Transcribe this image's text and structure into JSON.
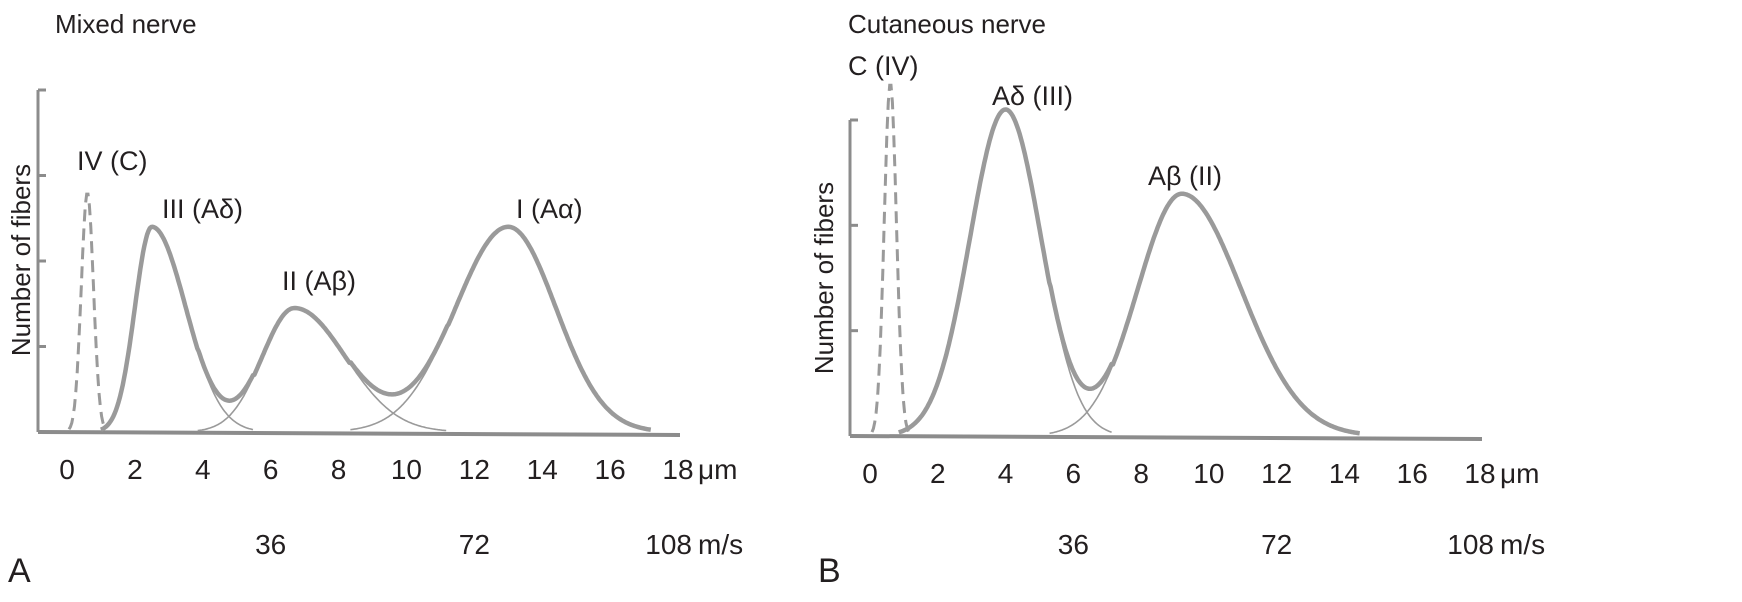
{
  "chart_data": [
    {
      "type": "line",
      "panel_letter": "A",
      "title": "Mixed nerve",
      "ylabel": "Number of fibers",
      "xlabel_unit": "μm",
      "velocity_unit": "m/s",
      "xlim": [
        0,
        18
      ],
      "ylim": [
        0,
        4
      ],
      "x_ticks": [
        "0",
        "2",
        "4",
        "6",
        "8",
        "10",
        "12",
        "14",
        "16",
        "18"
      ],
      "velocity_ticks": [
        {
          "x": 6,
          "label": "36"
        },
        {
          "x": 12,
          "label": "72"
        },
        {
          "x": 18,
          "label": "108"
        }
      ],
      "y_tick_count": 4,
      "series": [
        {
          "name": "IV (C)",
          "style": "dashed",
          "peak_x": 0.6,
          "peak_y": 2.8,
          "sigma_left": 0.18,
          "sigma_right": 0.18
        },
        {
          "name": "III (Aδ)",
          "style": "solid",
          "peak_x": 2.5,
          "peak_y": 2.4,
          "sigma_left": 0.5,
          "sigma_right": 1.0
        },
        {
          "name": "II (Aβ)",
          "style": "solid",
          "peak_x": 6.7,
          "peak_y": 1.45,
          "sigma_left": 0.95,
          "sigma_right": 1.5
        },
        {
          "name": "I (Aα)",
          "style": "solid",
          "peak_x": 13.0,
          "peak_y": 2.4,
          "sigma_left": 1.55,
          "sigma_right": 1.4
        }
      ],
      "colors": {
        "curve": "#9a9a9a",
        "axis": "#8c8c8c"
      }
    },
    {
      "type": "line",
      "panel_letter": "B",
      "title": "Cutaneous nerve",
      "ylabel": "Number of fibers",
      "xlabel_unit": "μm",
      "velocity_unit": "m/s",
      "xlim": [
        0,
        18
      ],
      "ylim": [
        0,
        3
      ],
      "x_ticks": [
        "0",
        "2",
        "4",
        "6",
        "8",
        "10",
        "12",
        "14",
        "16",
        "18"
      ],
      "velocity_ticks": [
        {
          "x": 6,
          "label": "36"
        },
        {
          "x": 12,
          "label": "72"
        },
        {
          "x": 18,
          "label": "108"
        }
      ],
      "y_tick_count": 3,
      "series": [
        {
          "name": "C (IV)",
          "style": "dashed",
          "peak_x": 0.6,
          "peak_y": 3.35,
          "sigma_left": 0.18,
          "sigma_right": 0.18
        },
        {
          "name": "Aδ (III)",
          "style": "solid",
          "peak_x": 4.0,
          "peak_y": 3.1,
          "sigma_left": 1.05,
          "sigma_right": 1.05
        },
        {
          "name": "Aβ (II)",
          "style": "solid",
          "peak_x": 9.2,
          "peak_y": 2.3,
          "sigma_left": 1.3,
          "sigma_right": 1.75
        }
      ],
      "colors": {
        "curve": "#9a9a9a",
        "axis": "#8c8c8c"
      }
    }
  ]
}
